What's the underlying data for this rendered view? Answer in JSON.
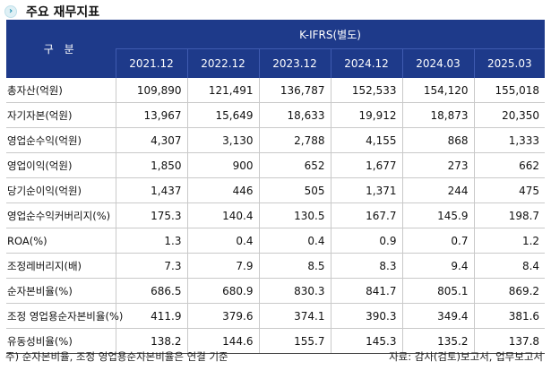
{
  "title": {
    "icon": "chevron-right-circle-icon",
    "text": "주요 재무지표"
  },
  "table": {
    "category_header": "구 분",
    "group_header": "K-IFRS(별도)",
    "columns": [
      "2021.12",
      "2022.12",
      "2023.12",
      "2024.12",
      "2024.03",
      "2025.03"
    ],
    "rows": [
      {
        "label": "총자산(억원)",
        "values": [
          "109,890",
          "121,491",
          "136,787",
          "152,533",
          "154,120",
          "155,018"
        ]
      },
      {
        "label": "자기자본(억원)",
        "values": [
          "13,967",
          "15,649",
          "18,633",
          "19,912",
          "18,873",
          "20,350"
        ]
      },
      {
        "label": "영업순수익(억원)",
        "values": [
          "4,307",
          "3,130",
          "2,788",
          "4,155",
          "868",
          "1,333"
        ]
      },
      {
        "label": "영업이익(억원)",
        "values": [
          "1,850",
          "900",
          "652",
          "1,677",
          "273",
          "662"
        ]
      },
      {
        "label": "당기순이익(억원)",
        "values": [
          "1,437",
          "446",
          "505",
          "1,371",
          "244",
          "475"
        ]
      },
      {
        "label": "영업순수익커버리지(%)",
        "values": [
          "175.3",
          "140.4",
          "130.5",
          "167.7",
          "145.9",
          "198.7"
        ]
      },
      {
        "label": "ROA(%)",
        "values": [
          "1.3",
          "0.4",
          "0.4",
          "0.9",
          "0.7",
          "1.2"
        ]
      },
      {
        "label": "조정레버리지(배)",
        "values": [
          "7.3",
          "7.9",
          "8.5",
          "8.3",
          "9.4",
          "8.4"
        ]
      },
      {
        "label": "순자본비율(%)",
        "values": [
          "686.5",
          "680.9",
          "830.3",
          "841.7",
          "805.1",
          "869.2"
        ]
      },
      {
        "label": "조정 영업용순자본비율(%)",
        "values": [
          "411.9",
          "379.6",
          "374.1",
          "390.3",
          "349.4",
          "381.6"
        ]
      },
      {
        "label": "유동성비율(%)",
        "values": [
          "138.2",
          "144.6",
          "155.7",
          "145.3",
          "135.2",
          "137.8"
        ]
      }
    ]
  },
  "footnote": "주) 순자본비율, 조정 영업용순자본비율은 연결 기준",
  "source": "자료: 감사(검토)보고서, 업무보고서",
  "colors": {
    "header_bg": "#1e3a8a",
    "header_text": "#ffffff",
    "grid": "#c9c9c9",
    "icon": "#1a8fb0"
  }
}
